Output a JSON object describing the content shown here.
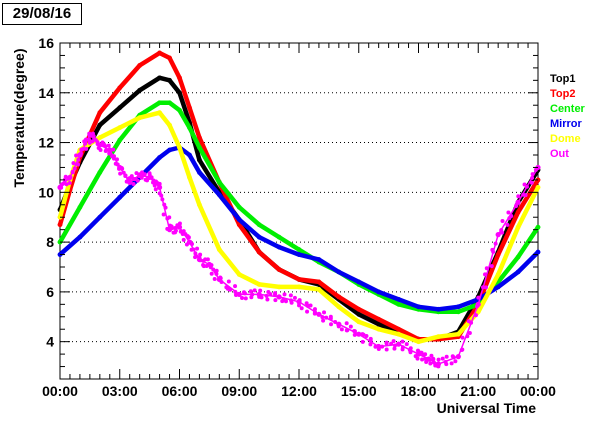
{
  "date_label": "29/08/16",
  "chart_data": {
    "type": "scatter",
    "xlabel": "Universal Time",
    "ylabel": "Temperature(degree)",
    "xlim": [
      0,
      24
    ],
    "ylim": [
      2.5,
      16
    ],
    "x_ticks": [
      0,
      3,
      6,
      9,
      12,
      15,
      18,
      21,
      24
    ],
    "x_tick_labels": [
      "00:00",
      "03:00",
      "06:00",
      "09:00",
      "12:00",
      "15:00",
      "18:00",
      "21:00",
      "00:00"
    ],
    "y_ticks": [
      4,
      6,
      8,
      10,
      12,
      14,
      16
    ],
    "y_tick_labels": [
      "4",
      "6",
      "8",
      "10",
      "12",
      "14",
      "16"
    ],
    "grid": "horizontal dotted",
    "legend_position": "right",
    "series": [
      {
        "name": "Top1",
        "color": "#000000",
        "x": [
          0,
          0.5,
          1,
          2,
          3,
          4,
          5,
          5.5,
          6,
          6.5,
          7,
          8,
          9,
          10,
          11,
          12,
          13,
          14,
          15,
          16,
          17,
          18,
          19,
          20,
          21,
          22,
          23,
          24
        ],
        "y": [
          9.3,
          10.3,
          11.2,
          12.7,
          13.4,
          14.1,
          14.6,
          14.5,
          14.0,
          12.8,
          11.3,
          10.0,
          8.9,
          7.6,
          6.9,
          6.5,
          6.3,
          5.7,
          5.1,
          4.7,
          4.4,
          4.1,
          4.1,
          4.4,
          5.8,
          7.6,
          9.6,
          10.9
        ]
      },
      {
        "name": "Top2",
        "color": "#ff0000",
        "x": [
          0,
          0.5,
          1,
          2,
          3,
          4,
          5,
          5.5,
          6,
          6.5,
          7,
          8,
          9,
          10,
          11,
          12,
          13,
          14,
          15,
          16,
          17,
          18,
          19,
          20,
          21,
          22,
          23,
          24
        ],
        "y": [
          8.7,
          10.1,
          11.4,
          13.2,
          14.2,
          15.1,
          15.6,
          15.4,
          14.6,
          13.4,
          12.2,
          10.4,
          8.7,
          7.6,
          6.9,
          6.5,
          6.4,
          5.8,
          5.3,
          4.9,
          4.5,
          4.1,
          4.1,
          4.2,
          5.5,
          7.5,
          9.2,
          10.5
        ]
      },
      {
        "name": "Center",
        "color": "#00ee00",
        "x": [
          0,
          1,
          2,
          3,
          4,
          5,
          5.5,
          6,
          6.5,
          7,
          8,
          9,
          10,
          11,
          12,
          13,
          14,
          15,
          16,
          17,
          18,
          19,
          20,
          21,
          22,
          23,
          24
        ],
        "y": [
          8.0,
          9.4,
          10.8,
          12.1,
          13.1,
          13.6,
          13.6,
          13.3,
          12.6,
          11.8,
          10.4,
          9.4,
          8.7,
          8.2,
          7.7,
          7.2,
          6.8,
          6.3,
          5.9,
          5.5,
          5.3,
          5.2,
          5.2,
          5.5,
          6.4,
          7.4,
          8.6
        ]
      },
      {
        "name": "Mirror",
        "color": "#0000ee",
        "x": [
          0,
          1,
          2,
          3,
          4,
          5,
          5.5,
          6,
          6.5,
          7,
          8,
          9,
          10,
          11,
          12,
          13,
          14,
          15,
          16,
          17,
          18,
          19,
          20,
          21,
          22,
          23,
          24
        ],
        "y": [
          7.5,
          8.2,
          9.0,
          9.8,
          10.6,
          11.4,
          11.7,
          11.8,
          11.5,
          10.8,
          9.9,
          8.9,
          8.2,
          7.8,
          7.5,
          7.3,
          6.8,
          6.4,
          6.0,
          5.7,
          5.4,
          5.3,
          5.4,
          5.7,
          6.2,
          6.8,
          7.6
        ]
      },
      {
        "name": "Dome",
        "color": "#ffff00",
        "x": [
          0,
          0.5,
          1,
          2,
          3,
          4,
          5,
          5.5,
          6,
          6.5,
          7,
          8,
          9,
          10,
          11,
          12,
          13,
          14,
          15,
          16,
          17,
          18,
          19,
          20,
          21,
          22,
          23,
          24
        ],
        "y": [
          9.0,
          10.5,
          11.7,
          12.2,
          12.6,
          13.0,
          13.2,
          12.7,
          11.8,
          10.6,
          9.5,
          7.7,
          6.7,
          6.3,
          6.2,
          6.2,
          6.1,
          5.4,
          4.8,
          4.5,
          4.3,
          4.0,
          4.2,
          4.3,
          5.2,
          6.7,
          8.6,
          10.2
        ]
      },
      {
        "name": "Out",
        "color": "#ff00ff",
        "x": [
          0,
          0.5,
          1,
          1.5,
          2,
          2.5,
          3,
          3.5,
          4,
          4.5,
          5,
          5.5,
          6,
          6.5,
          7,
          7.5,
          8,
          9,
          10,
          11,
          12,
          13,
          14,
          15,
          16,
          17,
          18,
          18.5,
          19,
          20,
          21,
          22,
          23,
          24
        ],
        "y": [
          10.2,
          10.6,
          11.5,
          12.3,
          11.9,
          11.7,
          11.0,
          10.4,
          10.7,
          10.6,
          10.2,
          8.5,
          8.6,
          8.0,
          7.3,
          7.1,
          6.5,
          5.9,
          5.9,
          5.8,
          5.6,
          5.1,
          4.7,
          4.3,
          3.8,
          3.9,
          3.5,
          3.3,
          3.1,
          3.4,
          5.5,
          8.3,
          9.6,
          11.0
        ]
      }
    ]
  }
}
